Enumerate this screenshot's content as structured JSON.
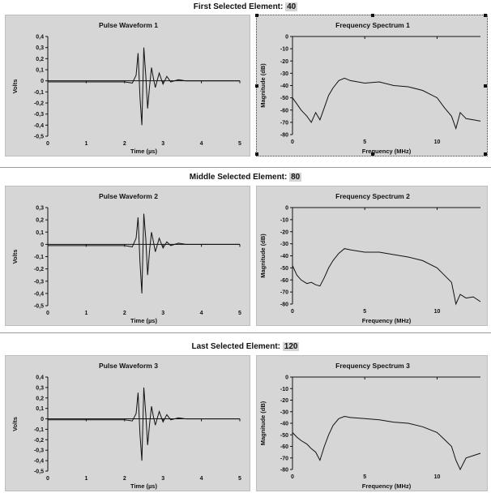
{
  "sections": [
    {
      "title_prefix": "First Selected Element: ",
      "element_number": "40",
      "waveform_title": "Pulse Waveform 1",
      "spectrum_title": "Frequency Spectrum 1"
    },
    {
      "title_prefix": "Middle Selected Element: ",
      "element_number": "80",
      "waveform_title": "Pulse Waveform 2",
      "spectrum_title": "Frequency Spectrum 2"
    },
    {
      "title_prefix": "Last Selected Element: ",
      "element_number": "120",
      "waveform_title": "Pulse Waveform 3",
      "spectrum_title": "Frequency Spectrum 3"
    }
  ],
  "chart_data": [
    {
      "type": "line",
      "title": "Pulse Waveform 1",
      "xlabel": "Time (µs)",
      "ylabel": "Volts",
      "xlim": [
        0,
        5
      ],
      "ylim": [
        -0.5,
        0.4
      ],
      "xticks": [
        0,
        1,
        2,
        3,
        4,
        5
      ],
      "yticks": [
        "0,4",
        "0,3",
        "0,2",
        "0,1",
        "0",
        "-0,1",
        "-0,2",
        "-0,3",
        "-0,4",
        "-0,5"
      ],
      "x": [
        0,
        0.5,
        1,
        1.5,
        2,
        2.2,
        2.3,
        2.35,
        2.4,
        2.45,
        2.5,
        2.55,
        2.6,
        2.65,
        2.7,
        2.75,
        2.8,
        2.9,
        3,
        3.1,
        3.2,
        3.4,
        3.6,
        4,
        4.5,
        5
      ],
      "y": [
        -0.01,
        -0.01,
        -0.01,
        -0.01,
        -0.01,
        -0.02,
        0.05,
        0.25,
        -0.15,
        -0.4,
        0.3,
        0.05,
        -0.25,
        -0.05,
        0.12,
        0.02,
        -0.06,
        0.07,
        -0.03,
        0.04,
        -0.01,
        0.01,
        0,
        0,
        0,
        0
      ]
    },
    {
      "type": "line",
      "title": "Frequency Spectrum 1",
      "xlabel": "Frequency (MHz)",
      "ylabel": "Magnitude (dB)",
      "xlim": [
        0,
        13
      ],
      "ylim": [
        -80,
        0
      ],
      "xticks": [
        0,
        5,
        10
      ],
      "yticks": [
        "0",
        "-10",
        "-20",
        "-30",
        "-40",
        "-50",
        "-60",
        "-70",
        "-80"
      ],
      "x": [
        0,
        0.3,
        0.6,
        1,
        1.3,
        1.6,
        1.9,
        2.2,
        2.5,
        2.8,
        3.2,
        3.6,
        4,
        5,
        6,
        7,
        8,
        9,
        10,
        10.5,
        11,
        11.3,
        11.6,
        12,
        12.5,
        13
      ],
      "y": [
        -50,
        -55,
        -60,
        -65,
        -70,
        -62,
        -68,
        -58,
        -48,
        -42,
        -36,
        -34,
        -36,
        -38,
        -37,
        -40,
        -41,
        -44,
        -50,
        -58,
        -65,
        -75,
        -62,
        -67,
        -68,
        -69
      ]
    },
    {
      "type": "line",
      "title": "Pulse Waveform 2",
      "xlabel": "Time (µs)",
      "ylabel": "Volts",
      "xlim": [
        0,
        5
      ],
      "ylim": [
        -0.5,
        0.3
      ],
      "xticks": [
        0,
        1,
        2,
        3,
        4,
        5
      ],
      "yticks": [
        "0,3",
        "0,2",
        "0,1",
        "0",
        "-0,1",
        "-0,2",
        "-0,3",
        "-0,4",
        "-0,5"
      ],
      "x": [
        0,
        0.5,
        1,
        1.5,
        2,
        2.2,
        2.3,
        2.35,
        2.4,
        2.45,
        2.5,
        2.55,
        2.6,
        2.65,
        2.7,
        2.75,
        2.8,
        2.9,
        3,
        3.1,
        3.2,
        3.4,
        3.6,
        4,
        4.5,
        5
      ],
      "y": [
        -0.01,
        -0.01,
        -0.01,
        -0.01,
        -0.01,
        -0.02,
        0.05,
        0.22,
        -0.15,
        -0.4,
        0.25,
        0.05,
        -0.25,
        -0.05,
        0.1,
        0.02,
        -0.06,
        0.05,
        -0.03,
        0.02,
        -0.01,
        0.01,
        0,
        0,
        0,
        0
      ]
    },
    {
      "type": "line",
      "title": "Frequency Spectrum 2",
      "xlabel": "Frequency (MHz)",
      "ylabel": "Magnitude (dB)",
      "xlim": [
        0,
        13
      ],
      "ylim": [
        -80,
        0
      ],
      "xticks": [
        0,
        5,
        10
      ],
      "yticks": [
        "0",
        "-10",
        "-20",
        "-30",
        "-40",
        "-50",
        "-60",
        "-70",
        "-80"
      ],
      "x": [
        0,
        0.3,
        0.6,
        1,
        1.3,
        1.6,
        1.9,
        2.2,
        2.5,
        2.8,
        3.2,
        3.6,
        4,
        5,
        6,
        7,
        8,
        9,
        10,
        10.5,
        11,
        11.3,
        11.6,
        12,
        12.5,
        13
      ],
      "y": [
        -48,
        -56,
        -60,
        -63,
        -62,
        -64,
        -65,
        -58,
        -50,
        -44,
        -38,
        -34,
        -35,
        -37,
        -37,
        -39,
        -41,
        -44,
        -50,
        -56,
        -62,
        -80,
        -72,
        -75,
        -74,
        -78
      ]
    },
    {
      "type": "line",
      "title": "Pulse Waveform 3",
      "xlabel": "Time (µs)",
      "ylabel": "Volts",
      "xlim": [
        0,
        5
      ],
      "ylim": [
        -0.5,
        0.4
      ],
      "xticks": [
        0,
        1,
        2,
        3,
        4,
        5
      ],
      "yticks": [
        "0,4",
        "0,3",
        "0,2",
        "0,1",
        "0",
        "-0,1",
        "-0,2",
        "-0,3",
        "-0,4",
        "-0,5"
      ],
      "x": [
        0,
        0.5,
        1,
        1.5,
        2,
        2.2,
        2.3,
        2.35,
        2.4,
        2.45,
        2.5,
        2.55,
        2.6,
        2.65,
        2.7,
        2.75,
        2.8,
        2.9,
        3,
        3.1,
        3.2,
        3.4,
        3.6,
        4,
        4.5,
        5
      ],
      "y": [
        -0.01,
        -0.01,
        -0.01,
        -0.01,
        -0.01,
        -0.02,
        0.05,
        0.25,
        -0.15,
        -0.4,
        0.3,
        0.05,
        -0.25,
        -0.05,
        0.12,
        0.02,
        -0.06,
        0.07,
        -0.03,
        0.04,
        -0.01,
        0.01,
        0,
        0,
        0,
        0
      ]
    },
    {
      "type": "line",
      "title": "Frequency Spectrum 3",
      "xlabel": "Frequency (MHz)",
      "ylabel": "Magnitude (dB)",
      "xlim": [
        0,
        13
      ],
      "ylim": [
        -80,
        0
      ],
      "xticks": [
        0,
        5,
        10
      ],
      "yticks": [
        "0",
        "-10",
        "-20",
        "-30",
        "-40",
        "-50",
        "-60",
        "-70",
        "-80"
      ],
      "x": [
        0,
        0.3,
        0.6,
        1,
        1.3,
        1.6,
        1.9,
        2.2,
        2.5,
        2.8,
        3.2,
        3.6,
        4,
        5,
        6,
        7,
        8,
        9,
        10,
        10.5,
        11,
        11.3,
        11.6,
        12,
        12.5,
        13
      ],
      "y": [
        -48,
        -52,
        -55,
        -58,
        -62,
        -65,
        -72,
        -60,
        -50,
        -42,
        -36,
        -34,
        -35,
        -36,
        -37,
        -39,
        -40,
        -43,
        -48,
        -54,
        -60,
        -72,
        -80,
        -70,
        -68,
        -66
      ]
    }
  ]
}
